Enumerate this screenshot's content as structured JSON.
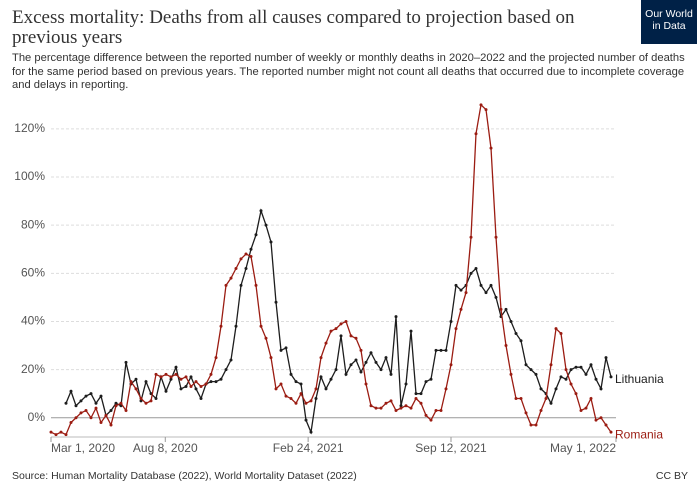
{
  "chart_data": {
    "type": "line",
    "title": "Excess mortality: Deaths from all causes compared to projection based on previous years",
    "subtitle": "The percentage difference between the reported number of weekly or monthly deaths in 2020–2022 and the projected number of deaths for the same period based on previous years. The reported number might not count all deaths that occurred due to incomplete coverage and delays in reporting.",
    "source": "Source: Human Mortality Database (2022), World Mortality Dataset (2022)",
    "license": "CC BY",
    "logo": [
      "Our World",
      "in Data"
    ],
    "x": [
      "2020-03-01",
      "2020-03-08",
      "2020-03-15",
      "2020-03-22",
      "2020-03-29",
      "2020-04-05",
      "2020-04-12",
      "2020-04-19",
      "2020-04-26",
      "2020-05-03",
      "2020-05-10",
      "2020-05-17",
      "2020-05-24",
      "2020-05-31",
      "2020-06-07",
      "2020-06-14",
      "2020-06-21",
      "2020-06-28",
      "2020-07-05",
      "2020-07-12",
      "2020-07-19",
      "2020-07-26",
      "2020-08-02",
      "2020-08-09",
      "2020-08-16",
      "2020-08-23",
      "2020-08-30",
      "2020-09-06",
      "2020-09-13",
      "2020-09-20",
      "2020-09-27",
      "2020-10-04",
      "2020-10-11",
      "2020-10-18",
      "2020-10-25",
      "2020-11-01",
      "2020-11-08",
      "2020-11-15",
      "2020-11-22",
      "2020-11-29",
      "2020-12-06",
      "2020-12-13",
      "2020-12-20",
      "2020-12-27",
      "2021-01-03",
      "2021-01-10",
      "2021-01-17",
      "2021-01-24",
      "2021-01-31",
      "2021-02-07",
      "2021-02-14",
      "2021-02-21",
      "2021-02-28",
      "2021-03-07",
      "2021-03-14",
      "2021-03-21",
      "2021-03-28",
      "2021-04-04",
      "2021-04-11",
      "2021-04-18",
      "2021-04-25",
      "2021-05-02",
      "2021-05-09",
      "2021-05-16",
      "2021-05-23",
      "2021-05-30",
      "2021-06-06",
      "2021-06-13",
      "2021-06-20",
      "2021-06-27",
      "2021-07-04",
      "2021-07-11",
      "2021-07-18",
      "2021-07-25",
      "2021-08-01",
      "2021-08-08",
      "2021-08-15",
      "2021-08-22",
      "2021-08-29",
      "2021-09-05",
      "2021-09-12",
      "2021-09-19",
      "2021-09-26",
      "2021-10-03",
      "2021-10-10",
      "2021-10-17",
      "2021-10-24",
      "2021-10-31",
      "2021-11-07",
      "2021-11-14",
      "2021-11-21",
      "2021-11-28",
      "2021-12-05",
      "2021-12-12",
      "2021-12-19",
      "2021-12-26",
      "2022-01-02",
      "2022-01-09",
      "2022-01-16",
      "2022-01-23",
      "2022-01-30",
      "2022-02-06",
      "2022-02-13",
      "2022-02-20",
      "2022-02-27",
      "2022-03-06",
      "2022-03-13",
      "2022-03-20",
      "2022-03-27",
      "2022-04-03",
      "2022-04-10",
      "2022-04-17",
      "2022-04-24"
    ],
    "series": [
      {
        "name": "Lithuania",
        "color": "#1d1d1d",
        "values": [
          null,
          null,
          null,
          6,
          11,
          5,
          7,
          9,
          10,
          6,
          9,
          1,
          3,
          6,
          5,
          23,
          14,
          16,
          7,
          15,
          10,
          8,
          17,
          11,
          16,
          21,
          12,
          13,
          17,
          12,
          8,
          14,
          15,
          15,
          16,
          20,
          24,
          38,
          55,
          62,
          70,
          76,
          86,
          80,
          73,
          48,
          28,
          29,
          18,
          15,
          14,
          -1,
          -6,
          8,
          17,
          12,
          16,
          20,
          34,
          18,
          22,
          24,
          19,
          23,
          27,
          23,
          20,
          25,
          18,
          42,
          5,
          14,
          36,
          10,
          10,
          15,
          16,
          28,
          28,
          28,
          40,
          55,
          53,
          55,
          60,
          62,
          55,
          52,
          55,
          50,
          42,
          45,
          40,
          35,
          32,
          22,
          20,
          18,
          12,
          10,
          6,
          12,
          17,
          16,
          20,
          21,
          21,
          18,
          22,
          16,
          12,
          25,
          17
        ]
      },
      {
        "name": "Romania",
        "color": "#9b1c12",
        "values": [
          -6,
          -7,
          -6,
          -7,
          -2,
          0,
          2,
          3,
          0,
          4,
          -2,
          1,
          -3,
          5,
          6,
          3,
          15,
          12,
          8,
          6,
          7,
          18,
          17,
          18,
          17,
          18,
          16,
          17,
          13,
          15,
          13,
          14,
          18,
          25,
          38,
          55,
          58,
          62,
          66,
          68,
          67,
          55,
          38,
          33,
          25,
          12,
          14,
          9,
          8,
          6,
          10,
          6,
          7,
          12,
          25,
          31,
          36,
          37,
          39,
          40,
          34,
          33,
          28,
          14,
          5,
          4,
          4,
          6,
          7,
          3,
          4,
          5,
          4,
          8,
          6,
          1,
          -1,
          3,
          3,
          12,
          22,
          37,
          45,
          52,
          75,
          118,
          130,
          128,
          112,
          75,
          45,
          30,
          18,
          8,
          8,
          2,
          -3,
          -3,
          3,
          8,
          22,
          37,
          35,
          20,
          14,
          10,
          3,
          4,
          8,
          -1,
          0,
          -3,
          -6
        ]
      }
    ],
    "xlim": [
      "2020-03-01",
      "2022-05-01"
    ],
    "xticks": [
      {
        "value": "2020-03-01",
        "label": "Mar 1, 2020"
      },
      {
        "value": "2020-08-08",
        "label": "Aug 8, 2020"
      },
      {
        "value": "2021-02-24",
        "label": "Feb 24, 2021"
      },
      {
        "value": "2021-09-12",
        "label": "Sep 12, 2021"
      },
      {
        "value": "2022-05-01",
        "label": "May 1, 2022"
      }
    ],
    "ylim": [
      -8,
      132
    ],
    "yticks": [
      {
        "value": 0,
        "label": "0%"
      },
      {
        "value": 20,
        "label": "20%"
      },
      {
        "value": 40,
        "label": "40%"
      },
      {
        "value": 60,
        "label": "60%"
      },
      {
        "value": 80,
        "label": "80%"
      },
      {
        "value": 100,
        "label": "100%"
      },
      {
        "value": 120,
        "label": "120%"
      }
    ],
    "grid": true
  }
}
